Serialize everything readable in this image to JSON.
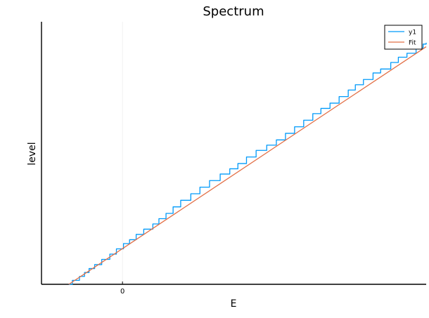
{
  "chart_data": {
    "type": "line",
    "title": "Spectrum",
    "xlabel": "E",
    "ylabel": "level",
    "xlim": [
      -1.6,
      6.0
    ],
    "ylim": [
      0,
      100
    ],
    "x_ticks": [
      0
    ],
    "x_tick_labels": [
      "0"
    ],
    "y_ticks": [],
    "grid": true,
    "legend": {
      "position": "top-right",
      "entries": [
        "y1",
        "Fit"
      ]
    },
    "series": [
      {
        "name": "y1",
        "color": "#009AFA",
        "style": "step",
        "x": [
          -1.06,
          -0.99,
          -0.85,
          -0.75,
          -0.66,
          -0.55,
          -0.41,
          -0.25,
          -0.12,
          0.02,
          0.14,
          0.27,
          0.42,
          0.6,
          0.72,
          0.86,
          1.0,
          1.15,
          1.35,
          1.53,
          1.72,
          1.93,
          2.12,
          2.28,
          2.45,
          2.64,
          2.85,
          3.04,
          3.22,
          3.4,
          3.58,
          3.76,
          3.92,
          4.1,
          4.28,
          4.46,
          4.6,
          4.76,
          4.95,
          5.1,
          5.3,
          5.45,
          5.62,
          5.8,
          5.94,
          6.0
        ],
        "y": [
          0,
          1.5,
          3,
          4.5,
          6,
          7.5,
          9.5,
          11.5,
          13.5,
          15.5,
          17,
          19,
          21,
          23,
          25,
          27,
          29.5,
          32,
          34.5,
          37,
          39.5,
          42,
          44,
          46,
          48.5,
          51,
          53,
          55,
          57.5,
          60,
          62.5,
          65,
          67,
          69,
          71.5,
          74,
          76,
          78,
          80.5,
          82,
          84.5,
          86.5,
          88,
          90,
          91.5,
          92
        ]
      },
      {
        "name": "Fit",
        "color": "#E26F46",
        "style": "line",
        "x": [
          -1.06,
          6.0
        ],
        "y": [
          0,
          90.5
        ]
      }
    ]
  }
}
